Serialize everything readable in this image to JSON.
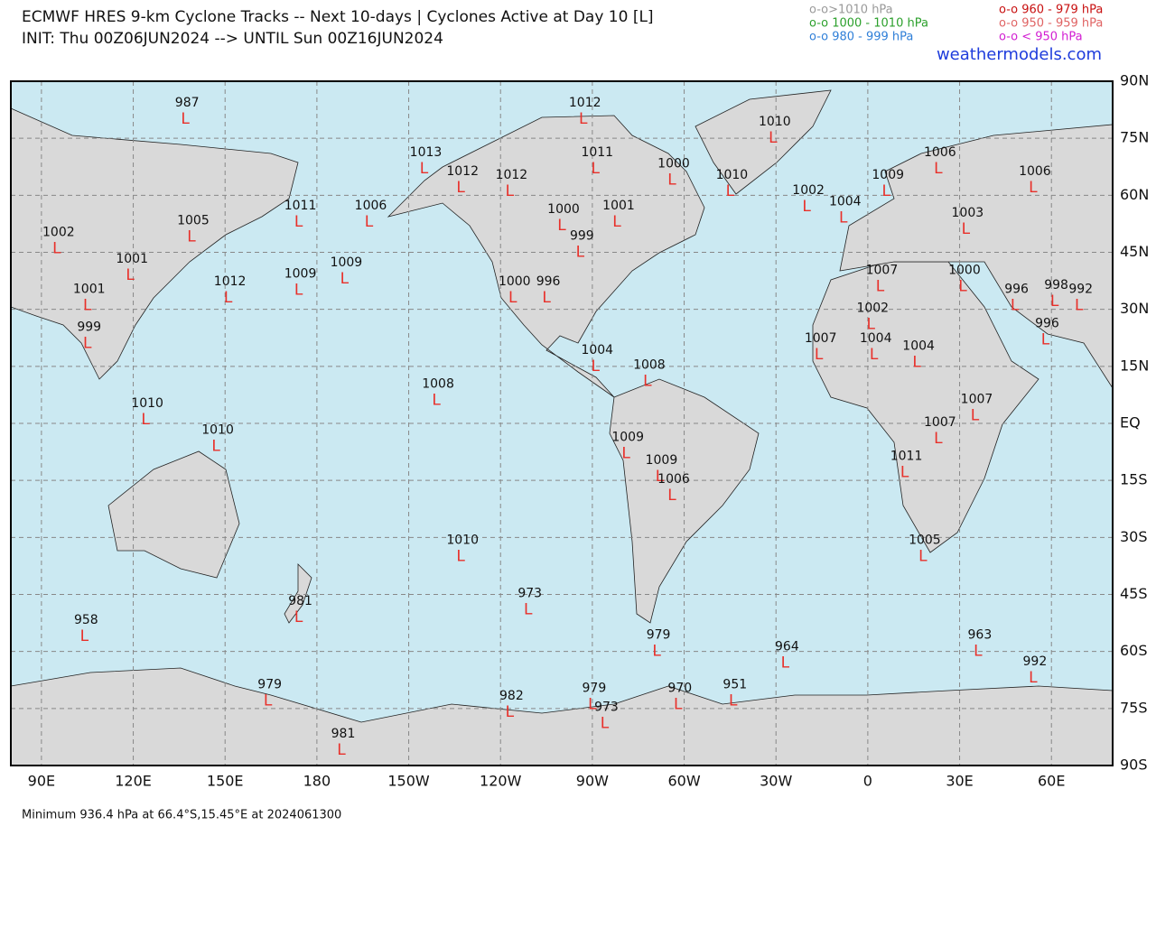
{
  "header": {
    "title": "ECMWF HRES 9-km Cyclone Tracks -- Next 10-days | Cyclones Active at Day 10 [L]",
    "subtitle": "INIT: Thu 00Z06JUN2024 --> UNTIL Sun 00Z16JUN2024",
    "site": "weathermodels.com"
  },
  "legend": [
    {
      "label": "o-o>1010 hPa",
      "color": "#9a9a9a"
    },
    {
      "label": "o-o 1000 - 1010 hPa",
      "color": "#2ca02c"
    },
    {
      "label": "o-o 980 - 999 hPa",
      "color": "#2f7fd8"
    },
    {
      "label": "o-o 960 - 979 hPa",
      "color": "#c81010"
    },
    {
      "label": "o-o 950 - 959 hPa",
      "color": "#e06464"
    },
    {
      "label": "o-o < 950 hPa",
      "color": "#d21ed2"
    }
  ],
  "map": {
    "lon_range": [
      80,
      440
    ],
    "lat_range": [
      -90,
      90
    ],
    "lon_ticks": [
      {
        "value": 90,
        "label": "90E"
      },
      {
        "value": 120,
        "label": "120E"
      },
      {
        "value": 150,
        "label": "150E"
      },
      {
        "value": 180,
        "label": "180"
      },
      {
        "value": 210,
        "label": "150W"
      },
      {
        "value": 240,
        "label": "120W"
      },
      {
        "value": 270,
        "label": "90W"
      },
      {
        "value": 300,
        "label": "60W"
      },
      {
        "value": 330,
        "label": "30W"
      },
      {
        "value": 360,
        "label": "0"
      },
      {
        "value": 390,
        "label": "30E"
      },
      {
        "value": 420,
        "label": "60E"
      }
    ],
    "lat_ticks": [
      {
        "value": 90,
        "label": "90N"
      },
      {
        "value": 75,
        "label": "75N"
      },
      {
        "value": 60,
        "label": "60N"
      },
      {
        "value": 45,
        "label": "45N"
      },
      {
        "value": 30,
        "label": "30N"
      },
      {
        "value": 15,
        "label": "15N"
      },
      {
        "value": 0,
        "label": "EQ"
      },
      {
        "value": -15,
        "label": "15S"
      },
      {
        "value": -30,
        "label": "30S"
      },
      {
        "value": -45,
        "label": "45S"
      },
      {
        "value": -60,
        "label": "60S"
      },
      {
        "value": -75,
        "label": "75S"
      },
      {
        "value": -90,
        "label": "90S"
      }
    ],
    "grid": true,
    "marker": "L",
    "marker_color": "#e8302a"
  },
  "cyclones": [
    {
      "pressure": "987",
      "lon": 137,
      "lat": 80
    },
    {
      "pressure": "1012",
      "lon": -93,
      "lat": 80
    },
    {
      "pressure": "1010",
      "lon": -31,
      "lat": 75
    },
    {
      "pressure": "1013",
      "lon": -145,
      "lat": 67
    },
    {
      "pressure": "1012",
      "lon": -133,
      "lat": 62
    },
    {
      "pressure": "1012",
      "lon": -117,
      "lat": 61
    },
    {
      "pressure": "1011",
      "lon": -89,
      "lat": 67
    },
    {
      "pressure": "1000",
      "lon": -64,
      "lat": 64
    },
    {
      "pressure": "1010",
      "lon": -45,
      "lat": 61
    },
    {
      "pressure": "1006",
      "lon": 23,
      "lat": 67
    },
    {
      "pressure": "1009",
      "lon": 6,
      "lat": 61
    },
    {
      "pressure": "1006",
      "lon": 54,
      "lat": 62
    },
    {
      "pressure": "1002",
      "lon": -20,
      "lat": 57
    },
    {
      "pressure": "1004",
      "lon": -8,
      "lat": 54
    },
    {
      "pressure": "1003",
      "lon": 32,
      "lat": 51
    },
    {
      "pressure": "1000",
      "lon": -100,
      "lat": 52
    },
    {
      "pressure": "1001",
      "lon": -82,
      "lat": 53
    },
    {
      "pressure": "999",
      "lon": -94,
      "lat": 45
    },
    {
      "pressure": "1006",
      "lon": -163,
      "lat": 53
    },
    {
      "pressure": "1011",
      "lon": 174,
      "lat": 53
    },
    {
      "pressure": "1005",
      "lon": 139,
      "lat": 49
    },
    {
      "pressure": "1002",
      "lon": 95,
      "lat": 46
    },
    {
      "pressure": "1001",
      "lon": 119,
      "lat": 39
    },
    {
      "pressure": "1009",
      "lon": 174,
      "lat": 35
    },
    {
      "pressure": "1009",
      "lon": -171,
      "lat": 38
    },
    {
      "pressure": "1012",
      "lon": 151,
      "lat": 33
    },
    {
      "pressure": "1001",
      "lon": 105,
      "lat": 31
    },
    {
      "pressure": "999",
      "lon": 105,
      "lat": 21
    },
    {
      "pressure": "1000",
      "lon": -116,
      "lat": 33
    },
    {
      "pressure": "996",
      "lon": -105,
      "lat": 33
    },
    {
      "pressure": "1007",
      "lon": 4,
      "lat": 36
    },
    {
      "pressure": "1000",
      "lon": 31,
      "lat": 36
    },
    {
      "pressure": "996",
      "lon": 48,
      "lat": 31
    },
    {
      "pressure": "998",
      "lon": 61,
      "lat": 32
    },
    {
      "pressure": "992",
      "lon": 69,
      "lat": 31
    },
    {
      "pressure": "996",
      "lon": 58,
      "lat": 22
    },
    {
      "pressure": "1002",
      "lon": 1,
      "lat": 26
    },
    {
      "pressure": "1007",
      "lon": -16,
      "lat": 18
    },
    {
      "pressure": "1004",
      "lon": 2,
      "lat": 18
    },
    {
      "pressure": "1004",
      "lon": 16,
      "lat": 16
    },
    {
      "pressure": "1004",
      "lon": -89,
      "lat": 15
    },
    {
      "pressure": "1008",
      "lon": -72,
      "lat": 11
    },
    {
      "pressure": "1008",
      "lon": -141,
      "lat": 6
    },
    {
      "pressure": "1010",
      "lon": 124,
      "lat": 1
    },
    {
      "pressure": "1007",
      "lon": 35,
      "lat": 2
    },
    {
      "pressure": "1007",
      "lon": 23,
      "lat": -4
    },
    {
      "pressure": "1010",
      "lon": 147,
      "lat": -6
    },
    {
      "pressure": "1009",
      "lon": -79,
      "lat": -8
    },
    {
      "pressure": "1009",
      "lon": -68,
      "lat": -14
    },
    {
      "pressure": "1006",
      "lon": -64,
      "lat": -19
    },
    {
      "pressure": "1011",
      "lon": 12,
      "lat": -13
    },
    {
      "pressure": "1010",
      "lon": -133,
      "lat": -35
    },
    {
      "pressure": "1005",
      "lon": 18,
      "lat": -35
    },
    {
      "pressure": "973",
      "lon": -111,
      "lat": -49
    },
    {
      "pressure": "981",
      "lon": 174,
      "lat": -51
    },
    {
      "pressure": "958",
      "lon": 104,
      "lat": -56
    },
    {
      "pressure": "979",
      "lon": -69,
      "lat": -60
    },
    {
      "pressure": "964",
      "lon": -27,
      "lat": -63
    },
    {
      "pressure": "963",
      "lon": 36,
      "lat": -60
    },
    {
      "pressure": "992",
      "lon": 54,
      "lat": -67
    },
    {
      "pressure": "979",
      "lon": 164,
      "lat": -73
    },
    {
      "pressure": "982",
      "lon": -117,
      "lat": -76
    },
    {
      "pressure": "979",
      "lon": -90,
      "lat": -74
    },
    {
      "pressure": "973",
      "lon": -86,
      "lat": -79
    },
    {
      "pressure": "970",
      "lon": -62,
      "lat": -74
    },
    {
      "pressure": "951",
      "lon": -44,
      "lat": -73
    },
    {
      "pressure": "981",
      "lon": -172,
      "lat": -86
    }
  ],
  "footer": "Minimum 936.4 hPa at 66.4°S,15.45°E at 2024061300"
}
